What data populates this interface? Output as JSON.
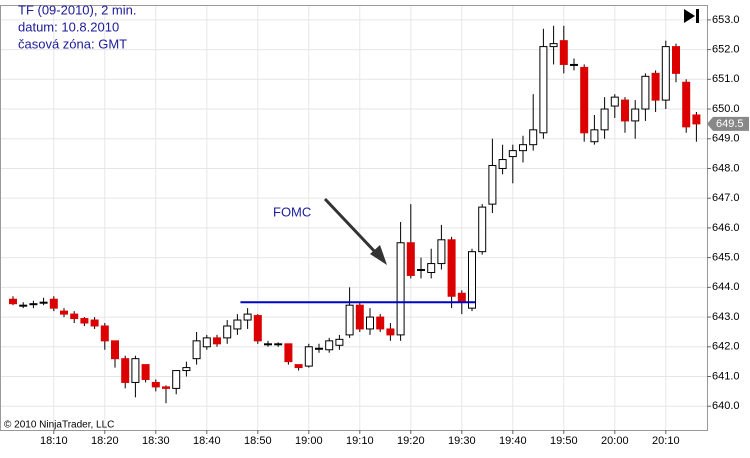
{
  "chart_data": {
    "type": "candlestick",
    "title_lines": [
      "TF (09-2010), 2 min.",
      "datum: 10.8.2010",
      "časová zóna: GMT"
    ],
    "annotation": "FOMC",
    "copyright": "© 2010 NinjaTrader, LLC",
    "categories": [
      null,
      null,
      null,
      null,
      "18:10",
      null,
      null,
      null,
      null,
      "18:20",
      null,
      null,
      null,
      null,
      "18:30",
      null,
      null,
      null,
      null,
      "18:40",
      null,
      null,
      null,
      null,
      "18:50",
      null,
      null,
      null,
      null,
      "19:00",
      null,
      null,
      null,
      null,
      "19:10",
      null,
      null,
      null,
      null,
      "19:20",
      null,
      null,
      null,
      null,
      "19:30",
      null,
      null,
      null,
      null,
      "19:40",
      null,
      null,
      null,
      null,
      "19:50",
      null,
      null,
      null,
      null,
      "20:00",
      null,
      null,
      null,
      null,
      "20:10",
      null,
      null,
      null
    ],
    "open": [
      643.6,
      643.4,
      643.45,
      643.5,
      643.6,
      643.2,
      643.1,
      642.95,
      642.9,
      642.7,
      642.2,
      641.6,
      640.8,
      641.4,
      640.8,
      640.65,
      640.6,
      641.2,
      641.6,
      642.0,
      642.3,
      642.3,
      642.6,
      642.9,
      643.05,
      642.1,
      642.1,
      642.1,
      641.4,
      641.35,
      641.95,
      641.9,
      642.05,
      642.4,
      643.4,
      642.6,
      643.0,
      642.6,
      642.4,
      645.5,
      644.6,
      644.5,
      644.8,
      645.6,
      643.8,
      643.3,
      645.2,
      646.8,
      648.0,
      648.4,
      648.6,
      648.8,
      649.2,
      652.1,
      652.3,
      651.5,
      651.4,
      648.9,
      649.3,
      650.1,
      650.3,
      649.6,
      650.0,
      651.2,
      650.3,
      652.1,
      650.9,
      649.8
    ],
    "high": [
      643.7,
      643.5,
      643.55,
      643.65,
      643.7,
      643.3,
      643.2,
      643.0,
      643.0,
      642.8,
      642.2,
      641.7,
      641.7,
      641.4,
      640.9,
      640.7,
      641.2,
      641.5,
      642.5,
      642.4,
      642.4,
      642.9,
      643.1,
      643.3,
      643.1,
      642.2,
      642.15,
      642.1,
      641.4,
      642.1,
      642.1,
      642.3,
      642.4,
      644.0,
      643.5,
      643.3,
      643.1,
      642.8,
      646.2,
      646.8,
      645.0,
      645.3,
      646.1,
      645.7,
      643.9,
      645.3,
      646.8,
      649.0,
      648.8,
      648.8,
      649.1,
      650.5,
      652.7,
      652.8,
      652.8,
      651.7,
      651.5,
      649.8,
      650.4,
      650.5,
      650.4,
      650.3,
      651.2,
      651.3,
      652.3,
      652.2,
      651.0,
      649.9
    ],
    "low": [
      643.4,
      643.3,
      643.3,
      643.4,
      643.2,
      643.0,
      642.8,
      642.7,
      642.6,
      641.9,
      641.3,
      640.6,
      640.3,
      640.8,
      640.5,
      640.1,
      640.4,
      641.0,
      641.4,
      641.9,
      642.0,
      642.1,
      642.4,
      642.6,
      642.1,
      642.0,
      642.0,
      641.4,
      641.2,
      641.3,
      641.8,
      641.8,
      641.9,
      642.3,
      642.5,
      642.4,
      642.5,
      642.2,
      642.2,
      644.3,
      644.3,
      644.3,
      644.6,
      643.3,
      643.1,
      643.2,
      645.1,
      646.5,
      647.8,
      647.5,
      648.2,
      648.6,
      649.0,
      651.5,
      651.2,
      651.3,
      648.9,
      648.8,
      649.0,
      649.7,
      649.2,
      649.0,
      649.6,
      649.9,
      650.0,
      650.9,
      649.2,
      648.9
    ],
    "close": [
      643.45,
      643.4,
      643.45,
      643.5,
      643.3,
      643.1,
      642.95,
      642.8,
      642.7,
      642.2,
      641.6,
      640.8,
      641.6,
      640.9,
      640.65,
      640.6,
      641.2,
      641.3,
      642.2,
      642.3,
      642.1,
      642.7,
      642.9,
      643.1,
      642.2,
      642.1,
      642.1,
      641.5,
      641.3,
      642.0,
      641.95,
      642.2,
      642.25,
      643.4,
      642.6,
      643.0,
      642.6,
      642.4,
      645.5,
      644.4,
      644.6,
      644.8,
      645.6,
      643.7,
      643.5,
      645.2,
      646.7,
      648.1,
      648.3,
      648.6,
      648.8,
      649.3,
      652.1,
      652.2,
      651.5,
      651.5,
      649.2,
      649.3,
      650.0,
      650.4,
      649.6,
      650.0,
      651.1,
      650.3,
      652.1,
      651.2,
      649.4,
      649.5
    ],
    "up_color": "#ffffff",
    "down_color": "#dd0000",
    "level": 643.5,
    "level_color": "#0000cc",
    "last_price": 649.5,
    "ylim": [
      639.2,
      653.5
    ],
    "yticks": [
      {
        "value": 640,
        "label": "640.0"
      },
      {
        "value": 641,
        "label": "641.0"
      },
      {
        "value": 642,
        "label": "642.0"
      },
      {
        "value": 643,
        "label": "643.0"
      },
      {
        "value": 644,
        "label": "644.0"
      },
      {
        "value": 645,
        "label": "645.0"
      },
      {
        "value": 646,
        "label": "646.0"
      },
      {
        "value": 647,
        "label": "647.0"
      },
      {
        "value": 648,
        "label": "648.0"
      },
      {
        "value": 649,
        "label": "649.0"
      },
      {
        "value": 650,
        "label": "650.0"
      },
      {
        "value": 651,
        "label": "651.0"
      },
      {
        "value": 652,
        "label": "652.0"
      },
      {
        "value": 653,
        "label": "653.0"
      }
    ],
    "grid": true
  }
}
